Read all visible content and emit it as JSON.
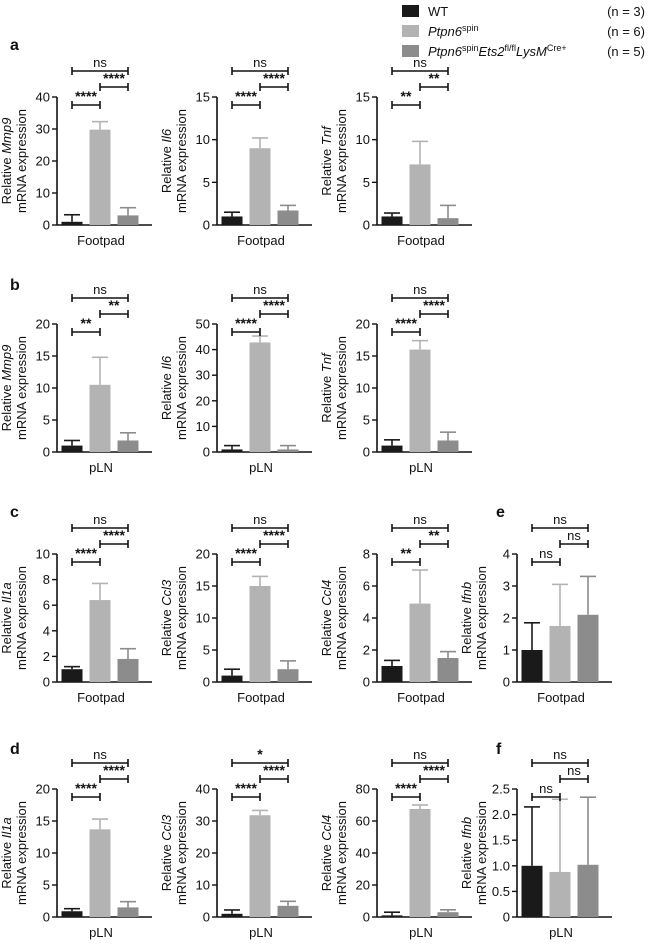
{
  "legend": {
    "items": [
      {
        "label": "WT",
        "n": "(n = 3)",
        "color": "#1a1a1a",
        "rich": [
          {
            "t": "WT"
          }
        ]
      },
      {
        "label": "Ptpn6spin",
        "n": "(n = 6)",
        "color": "#b3b3b3",
        "rich": [
          {
            "t": "Ptpn6",
            "i": true
          },
          {
            "t": "spin",
            "sup": true
          }
        ]
      },
      {
        "label": "Ptpn6spinEts2fl/flLysMCre+",
        "n": "(n = 5)",
        "color": "#8c8c8c",
        "rich": [
          {
            "t": "Ptpn6",
            "i": true
          },
          {
            "t": "spin",
            "sup": true
          },
          {
            "t": "Ets2",
            "i": true
          },
          {
            "t": "fl/fl",
            "sup": true
          },
          {
            "t": "LysM",
            "i": true
          },
          {
            "t": "Cre+",
            "sup": true
          }
        ]
      }
    ]
  },
  "colors": {
    "wt": "#1a1a1a",
    "spin": "#b3b3b3",
    "ets2": "#8c8c8c",
    "axis": "#111111"
  },
  "chart_data": [
    {
      "id": "a1",
      "panel_letter": "a",
      "type": "bar",
      "gene": "Mmp9",
      "ylabel_prefix": "Relative ",
      "ylabel_line2": "mRNA expression",
      "xlabel": "Footpad",
      "categories": [
        "WT",
        "Ptpn6spin",
        "Ptpn6spinEts2fl/flLysMCre+"
      ],
      "values": [
        1,
        29.8,
        3
      ],
      "errors": [
        2.2,
        2.5,
        2.4
      ],
      "ylim": [
        0,
        40
      ],
      "yticks": [
        "0",
        "10",
        "20",
        "30",
        "40"
      ],
      "sig": [
        {
          "from": 0,
          "to": 2,
          "label": "ns"
        },
        {
          "from": 1,
          "to": 2,
          "label": "****"
        },
        {
          "from": 0,
          "to": 1,
          "label": "****"
        }
      ]
    },
    {
      "id": "a2",
      "panel_letter": "",
      "type": "bar",
      "gene": "Il6",
      "ylabel_prefix": "Relative ",
      "ylabel_line2": "mRNA expression",
      "xlabel": "Footpad",
      "categories": [
        "WT",
        "Ptpn6spin",
        "Ptpn6spinEts2fl/flLysMCre+"
      ],
      "values": [
        1,
        9,
        1.7
      ],
      "errors": [
        0.5,
        1.2,
        0.6
      ],
      "ylim": [
        0,
        15
      ],
      "yticks": [
        "0",
        "5",
        "10",
        "15"
      ],
      "sig": [
        {
          "from": 0,
          "to": 2,
          "label": "ns"
        },
        {
          "from": 1,
          "to": 2,
          "label": "****"
        },
        {
          "from": 0,
          "to": 1,
          "label": "****"
        }
      ]
    },
    {
      "id": "a3",
      "panel_letter": "",
      "type": "bar",
      "gene": "Tnf",
      "ylabel_prefix": "Relative ",
      "ylabel_line2": "mRNA expression",
      "xlabel": "Footpad",
      "categories": [
        "WT",
        "Ptpn6spin",
        "Ptpn6spinEts2fl/flLysMCre+"
      ],
      "values": [
        1,
        7.1,
        0.8
      ],
      "errors": [
        0.4,
        2.7,
        1.5
      ],
      "ylim": [
        0,
        15
      ],
      "yticks": [
        "0",
        "5",
        "10",
        "15"
      ],
      "sig": [
        {
          "from": 0,
          "to": 2,
          "label": "ns"
        },
        {
          "from": 1,
          "to": 2,
          "label": "**"
        },
        {
          "from": 0,
          "to": 1,
          "label": "**"
        }
      ]
    },
    {
      "id": "b1",
      "panel_letter": "b",
      "type": "bar",
      "gene": "Mmp9",
      "ylabel_prefix": "Relative ",
      "ylabel_line2": "mRNA expression",
      "xlabel": "pLN",
      "categories": [
        "WT",
        "Ptpn6spin",
        "Ptpn6spinEts2fl/flLysMCre+"
      ],
      "values": [
        1,
        10.5,
        1.8
      ],
      "errors": [
        0.8,
        4.3,
        1.2
      ],
      "ylim": [
        0,
        20
      ],
      "yticks": [
        "0",
        "5",
        "10",
        "15",
        "20"
      ],
      "sig": [
        {
          "from": 0,
          "to": 2,
          "label": "ns"
        },
        {
          "from": 1,
          "to": 2,
          "label": "**"
        },
        {
          "from": 0,
          "to": 1,
          "label": "**"
        }
      ]
    },
    {
      "id": "b2",
      "panel_letter": "",
      "type": "bar",
      "gene": "Il6",
      "ylabel_prefix": "Relative ",
      "ylabel_line2": "mRNA expression",
      "xlabel": "pLN",
      "categories": [
        "WT",
        "Ptpn6spin",
        "Ptpn6spinEts2fl/flLysMCre+"
      ],
      "values": [
        1,
        42.8,
        1
      ],
      "errors": [
        1.5,
        2.5,
        1.5
      ],
      "ylim": [
        0,
        50
      ],
      "yticks": [
        "0",
        "10",
        "20",
        "30",
        "40",
        "50"
      ],
      "sig": [
        {
          "from": 0,
          "to": 2,
          "label": "ns"
        },
        {
          "from": 1,
          "to": 2,
          "label": "****"
        },
        {
          "from": 0,
          "to": 1,
          "label": "****"
        }
      ]
    },
    {
      "id": "b3",
      "panel_letter": "",
      "type": "bar",
      "gene": "Tnf",
      "ylabel_prefix": "Relative ",
      "ylabel_line2": "mRNA expression",
      "xlabel": "pLN",
      "categories": [
        "WT",
        "Ptpn6spin",
        "Ptpn6spinEts2fl/flLysMCre+"
      ],
      "values": [
        1,
        16,
        1.8
      ],
      "errors": [
        0.9,
        1.4,
        1.3
      ],
      "ylim": [
        0,
        20
      ],
      "yticks": [
        "0",
        "5",
        "10",
        "15",
        "20"
      ],
      "sig": [
        {
          "from": 0,
          "to": 2,
          "label": "ns"
        },
        {
          "from": 1,
          "to": 2,
          "label": "****"
        },
        {
          "from": 0,
          "to": 1,
          "label": "****"
        }
      ]
    },
    {
      "id": "c1",
      "panel_letter": "c",
      "type": "bar",
      "gene": "Il1a",
      "ylabel_prefix": "Relative ",
      "ylabel_line2": "mRNA expression",
      "xlabel": "Footpad",
      "categories": [
        "WT",
        "Ptpn6spin",
        "Ptpn6spinEts2fl/flLysMCre+"
      ],
      "values": [
        1,
        6.4,
        1.8
      ],
      "errors": [
        0.2,
        1.3,
        0.8
      ],
      "ylim": [
        0,
        10
      ],
      "yticks": [
        "0",
        "2",
        "4",
        "6",
        "8",
        "10"
      ],
      "sig": [
        {
          "from": 0,
          "to": 2,
          "label": "ns"
        },
        {
          "from": 1,
          "to": 2,
          "label": "****"
        },
        {
          "from": 0,
          "to": 1,
          "label": "****"
        }
      ]
    },
    {
      "id": "c2",
      "panel_letter": "",
      "type": "bar",
      "gene": "Ccl3",
      "ylabel_prefix": "Relative ",
      "ylabel_line2": "mRNA expression",
      "xlabel": "Footpad",
      "categories": [
        "WT",
        "Ptpn6spin",
        "Ptpn6spinEts2fl/flLysMCre+"
      ],
      "values": [
        1,
        15,
        2
      ],
      "errors": [
        1,
        1.5,
        1.3
      ],
      "ylim": [
        0,
        20
      ],
      "yticks": [
        "0",
        "5",
        "10",
        "15",
        "20"
      ],
      "sig": [
        {
          "from": 0,
          "to": 2,
          "label": "ns"
        },
        {
          "from": 1,
          "to": 2,
          "label": "****"
        },
        {
          "from": 0,
          "to": 1,
          "label": "****"
        }
      ]
    },
    {
      "id": "c3",
      "panel_letter": "",
      "type": "bar",
      "gene": "Ccl4",
      "ylabel_prefix": "Relative ",
      "ylabel_line2": "mRNA expression",
      "xlabel": "Footpad",
      "categories": [
        "WT",
        "Ptpn6spin",
        "Ptpn6spinEts2fl/flLysMCre+"
      ],
      "values": [
        1,
        4.9,
        1.5
      ],
      "errors": [
        0.35,
        2.1,
        0.4
      ],
      "ylim": [
        0,
        8
      ],
      "yticks": [
        "0",
        "2",
        "4",
        "6",
        "8"
      ],
      "sig": [
        {
          "from": 0,
          "to": 2,
          "label": "ns"
        },
        {
          "from": 1,
          "to": 2,
          "label": "**"
        },
        {
          "from": 0,
          "to": 1,
          "label": "**"
        }
      ]
    },
    {
      "id": "e",
      "panel_letter": "e",
      "type": "bar",
      "gene": "Ifnb",
      "ylabel_prefix": "Relative ",
      "ylabel_line2": "mRNA expression",
      "xlabel": "Footpad",
      "categories": [
        "WT",
        "Ptpn6spin",
        "Ptpn6spinEts2fl/flLysMCre+"
      ],
      "values": [
        1,
        1.75,
        2.1
      ],
      "errors": [
        0.85,
        1.3,
        1.2
      ],
      "ylim": [
        0,
        4
      ],
      "yticks": [
        "0",
        "1",
        "2",
        "3",
        "4"
      ],
      "sig": [
        {
          "from": 0,
          "to": 2,
          "label": "ns"
        },
        {
          "from": 1,
          "to": 2,
          "label": "ns"
        },
        {
          "from": 0,
          "to": 1,
          "label": "ns"
        }
      ]
    },
    {
      "id": "d1",
      "panel_letter": "d",
      "type": "bar",
      "gene": "Il1a",
      "ylabel_prefix": "Relative ",
      "ylabel_line2": "mRNA expression",
      "xlabel": "pLN",
      "categories": [
        "WT",
        "Ptpn6spin",
        "Ptpn6spinEts2fl/flLysMCre+"
      ],
      "values": [
        0.9,
        13.7,
        1.5
      ],
      "errors": [
        0.4,
        1.6,
        0.9
      ],
      "ylim": [
        0,
        20
      ],
      "yticks": [
        "0",
        "5",
        "10",
        "15",
        "20"
      ],
      "sig": [
        {
          "from": 0,
          "to": 2,
          "label": "ns"
        },
        {
          "from": 1,
          "to": 2,
          "label": "****"
        },
        {
          "from": 0,
          "to": 1,
          "label": "****"
        }
      ]
    },
    {
      "id": "d2",
      "panel_letter": "",
      "type": "bar",
      "gene": "Ccl3",
      "ylabel_prefix": "Relative ",
      "ylabel_line2": "mRNA expression",
      "xlabel": "pLN",
      "categories": [
        "WT",
        "Ptpn6spin",
        "Ptpn6spinEts2fl/flLysMCre+"
      ],
      "values": [
        1,
        31.8,
        3.5
      ],
      "errors": [
        1.2,
        1.5,
        1.4
      ],
      "ylim": [
        0,
        40
      ],
      "yticks": [
        "0",
        "10",
        "20",
        "30",
        "40"
      ],
      "sig": [
        {
          "from": 0,
          "to": 2,
          "label": "*"
        },
        {
          "from": 1,
          "to": 2,
          "label": "****"
        },
        {
          "from": 0,
          "to": 1,
          "label": "****"
        }
      ]
    },
    {
      "id": "d3",
      "panel_letter": "",
      "type": "bar",
      "gene": "Ccl4",
      "ylabel_prefix": "Relative ",
      "ylabel_line2": "mRNA expression",
      "xlabel": "pLN",
      "categories": [
        "WT",
        "Ptpn6spin",
        "Ptpn6spinEts2fl/flLysMCre+"
      ],
      "values": [
        1,
        67.5,
        3
      ],
      "errors": [
        2,
        2.5,
        1.5
      ],
      "ylim": [
        0,
        80
      ],
      "yticks": [
        "0",
        "20",
        "40",
        "60",
        "80"
      ],
      "sig": [
        {
          "from": 0,
          "to": 2,
          "label": "ns"
        },
        {
          "from": 1,
          "to": 2,
          "label": "****"
        },
        {
          "from": 0,
          "to": 1,
          "label": "****"
        }
      ]
    },
    {
      "id": "f",
      "panel_letter": "f",
      "type": "bar",
      "gene": "Ifnb",
      "ylabel_prefix": "Relative ",
      "ylabel_line2": "mRNA expression",
      "xlabel": "pLN",
      "categories": [
        "WT",
        "Ptpn6spin",
        "Ptpn6spinEts2fl/flLysMCre+"
      ],
      "values": [
        1,
        0.88,
        1.02
      ],
      "errors": [
        1.15,
        1.42,
        1.32
      ],
      "ylim": [
        0,
        2.5
      ],
      "yticks": [
        "0",
        "0.5",
        "1.0",
        "1.5",
        "2.0",
        "2.5"
      ],
      "sig": [
        {
          "from": 0,
          "to": 2,
          "label": "ns"
        },
        {
          "from": 1,
          "to": 2,
          "label": "ns"
        },
        {
          "from": 0,
          "to": 1,
          "label": "ns"
        }
      ]
    }
  ]
}
